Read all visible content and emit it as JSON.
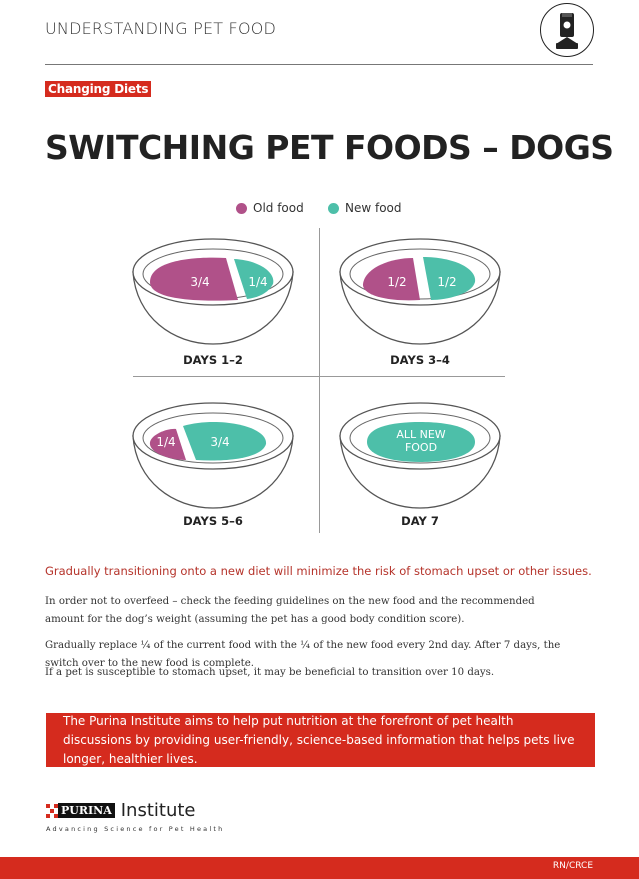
{
  "header": {
    "title": "UNDERSTANDING PET FOOD",
    "icon": "pet-food-bag-icon"
  },
  "tag": "Changing Diets",
  "title": "SWITCHING PET FOODS – DOGS",
  "legend": {
    "old": "Old food",
    "new": "New food"
  },
  "colors": {
    "old": "#b05189",
    "new": "#4dbfa9",
    "brand": "#d52b1e"
  },
  "bowls": [
    {
      "label": "DAYS 1–2",
      "old": "3/4",
      "new": "1/4"
    },
    {
      "label": "DAYS 3–4",
      "old": "1/2",
      "new": "1/2"
    },
    {
      "label": "DAYS 5–6",
      "old": "1/4",
      "new": "3/4"
    },
    {
      "label": "DAY 7",
      "new_line1": "ALL NEW",
      "new_line2": "FOOD"
    }
  ],
  "intro": "Gradually transitioning onto a new diet will minimize the risk of stomach upset or other issues.",
  "paragraphs": [
    "In order not to overfeed – check the feeding guidelines on the new food and the recommended amount for the dog’s weight (assuming the pet has a good body condition score).",
    "Gradually replace ¼ of the current food with the ¼ of the new food every 2nd day. After 7 days, the switch over to the new food is complete.",
    "If a pet is susceptible to stomach upset, it may be beneficial to transition over 10 days."
  ],
  "banner": "The Purina Institute aims to help put nutrition at the forefront of pet health discussions by providing user-friendly, science-based information that helps pets live longer, healthier lives.",
  "brand": {
    "name": "PURINA",
    "suffix": "Institute",
    "tagline": "Advancing Science for Pet Health"
  },
  "footer": {
    "code": "RN/CRCE"
  }
}
